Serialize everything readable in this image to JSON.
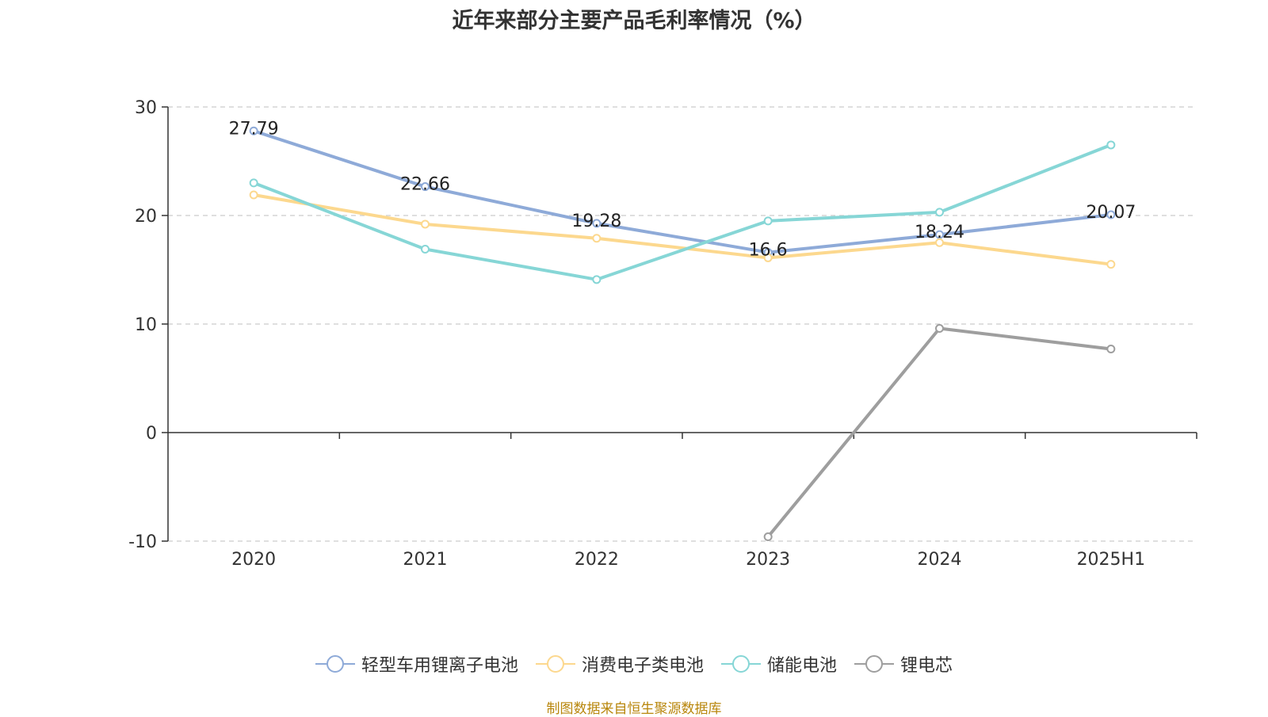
{
  "chart_data": {
    "type": "line",
    "title": "近年来部分主要产品毛利率情况（%）",
    "categories": [
      "2020",
      "2021",
      "2022",
      "2023",
      "2024",
      "2025H1"
    ],
    "ylim": [
      -10,
      30
    ],
    "yticks": [
      -10,
      0,
      10,
      20,
      30
    ],
    "grid": true,
    "legend_position": "bottom",
    "series": [
      {
        "name": "轻型车用锂离子电池",
        "color": "#8eaad8",
        "values": [
          27.79,
          22.66,
          19.28,
          16.6,
          18.24,
          20.07
        ],
        "labels": [
          "27.79",
          "22.66",
          "19.28",
          "16.6",
          "18.24",
          "20.07"
        ]
      },
      {
        "name": "消费电子类电池",
        "color": "#fcd88e",
        "values": [
          21.9,
          19.2,
          17.9,
          16.1,
          17.5,
          15.5
        ]
      },
      {
        "name": "储能电池",
        "color": "#86d6d6",
        "values": [
          23.0,
          16.9,
          14.1,
          19.5,
          20.3,
          26.5
        ]
      },
      {
        "name": "锂电芯",
        "color": "#9e9e9e",
        "values": [
          null,
          null,
          null,
          -9.6,
          9.6,
          7.7
        ]
      }
    ]
  },
  "source": "制图数据来自恒生聚源数据库"
}
